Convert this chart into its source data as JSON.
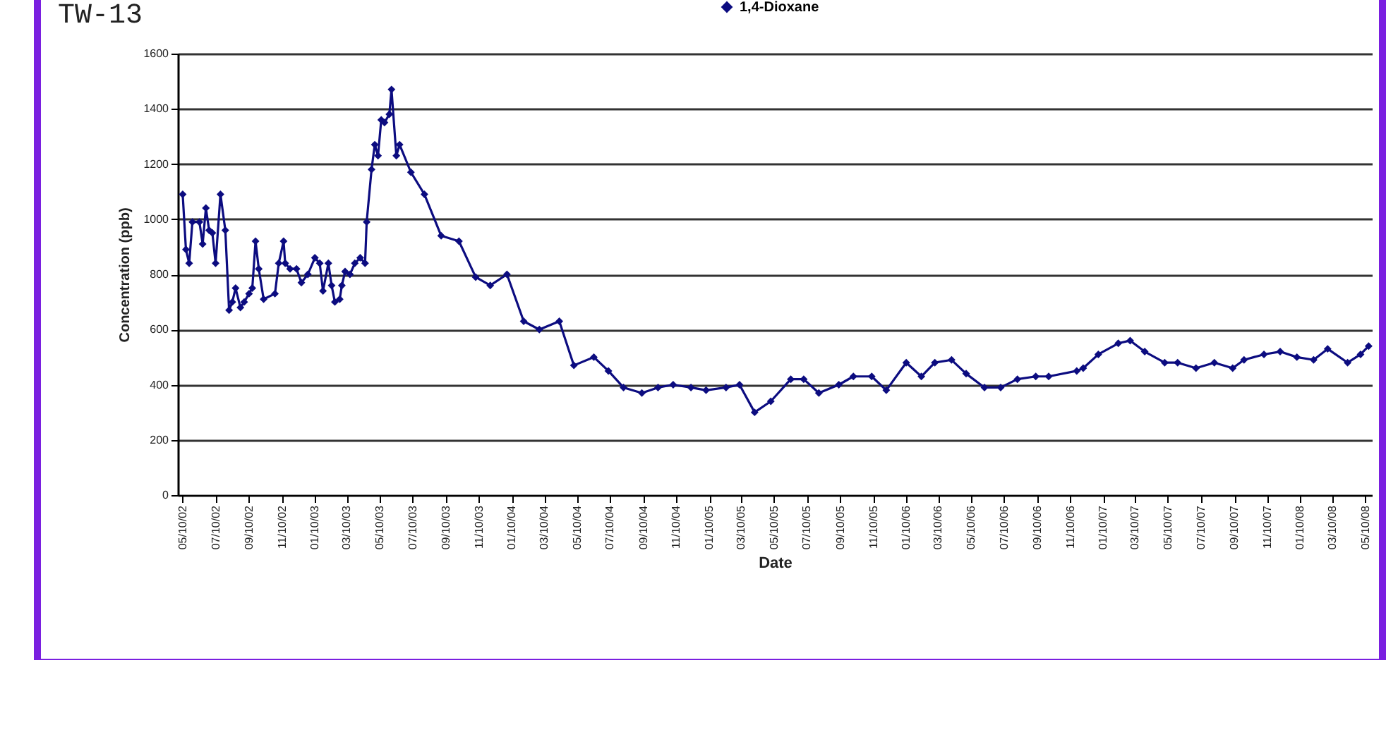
{
  "chart_data": {
    "type": "line",
    "title": "TW-13",
    "xlabel": "Date",
    "ylabel": "Concentration (ppb)",
    "x": [
      "2002-05-10",
      "2002-05-16",
      "2002-05-22",
      "2002-05-28",
      "2002-06-10",
      "2002-06-16",
      "2002-06-22",
      "2002-06-28",
      "2002-07-04",
      "2002-07-10",
      "2002-07-19",
      "2002-07-28",
      "2002-08-04",
      "2002-08-10",
      "2002-08-16",
      "2002-08-25",
      "2002-09-01",
      "2002-09-10",
      "2002-09-16",
      "2002-09-22",
      "2002-09-28",
      "2002-10-07",
      "2002-10-28",
      "2002-11-04",
      "2002-11-13",
      "2002-11-16",
      "2002-11-25",
      "2002-12-07",
      "2002-12-16",
      "2002-12-28",
      "2003-01-10",
      "2003-01-19",
      "2003-01-25",
      "2003-02-04",
      "2003-02-10",
      "2003-02-16",
      "2003-02-25",
      "2003-03-01",
      "2003-03-07",
      "2003-03-16",
      "2003-03-25",
      "2003-04-04",
      "2003-04-13",
      "2003-04-16",
      "2003-04-25",
      "2003-05-01",
      "2003-05-07",
      "2003-05-13",
      "2003-05-19",
      "2003-05-28",
      "2003-06-01",
      "2003-06-10",
      "2003-06-16",
      "2003-07-07",
      "2003-08-01",
      "2003-09-01",
      "2003-10-04",
      "2003-11-04",
      "2003-12-01",
      "2004-01-01",
      "2004-02-01",
      "2004-03-01",
      "2004-04-07",
      "2004-05-04",
      "2004-06-10",
      "2004-07-07",
      "2004-08-04",
      "2004-09-07",
      "2004-10-07",
      "2004-11-04",
      "2004-12-07",
      "2005-01-04",
      "2005-02-10",
      "2005-03-07",
      "2005-04-04",
      "2005-05-04",
      "2005-06-10",
      "2005-07-04",
      "2005-08-01",
      "2005-09-07",
      "2005-10-04",
      "2005-11-07",
      "2005-12-04",
      "2006-01-10",
      "2006-02-07",
      "2006-03-04",
      "2006-04-04",
      "2006-05-01",
      "2006-06-04",
      "2006-07-04",
      "2006-08-04",
      "2006-09-07",
      "2006-10-01",
      "2006-11-22",
      "2006-12-04",
      "2007-01-01",
      "2007-02-07",
      "2007-03-01",
      "2007-03-28",
      "2007-05-04",
      "2007-05-28",
      "2007-07-01",
      "2007-08-04",
      "2007-09-07",
      "2007-09-28",
      "2007-11-04",
      "2007-12-04",
      "2008-01-04",
      "2008-02-04",
      "2008-03-01",
      "2008-04-07",
      "2008-05-01",
      "2008-05-16"
    ],
    "series": [
      {
        "name": "1,4-Dioxane",
        "color": "#0c0c80",
        "values": [
          1090,
          890,
          840,
          990,
          990,
          910,
          1040,
          960,
          950,
          840,
          1090,
          960,
          670,
          700,
          750,
          680,
          700,
          730,
          750,
          920,
          820,
          710,
          730,
          840,
          920,
          840,
          820,
          820,
          770,
          800,
          860,
          840,
          740,
          840,
          760,
          700,
          710,
          760,
          810,
          800,
          840,
          860,
          840,
          990,
          1180,
          1270,
          1230,
          1360,
          1350,
          1380,
          1470,
          1230,
          1270,
          1170,
          1090,
          940,
          920,
          790,
          760,
          800,
          630,
          600,
          630,
          470,
          500,
          450,
          390,
          370,
          390,
          400,
          390,
          380,
          390,
          400,
          300,
          340,
          420,
          420,
          370,
          400,
          430,
          430,
          380,
          480,
          430,
          480,
          490,
          440,
          390,
          390,
          420,
          430,
          430,
          450,
          460,
          510,
          550,
          560,
          520,
          480,
          480,
          460,
          480,
          460,
          490,
          510,
          520,
          500,
          490,
          530,
          480,
          510,
          540
        ]
      }
    ],
    "ylim": [
      0,
      1600
    ],
    "yticks": [
      0,
      200,
      400,
      600,
      800,
      1000,
      1200,
      1400,
      1600
    ],
    "xlim": [
      "2002-05-01",
      "2008-05-22"
    ],
    "xticks": [
      {
        "value": "2002-05-10",
        "label": "05/10/02"
      },
      {
        "value": "2002-07-10",
        "label": "07/10/02"
      },
      {
        "value": "2002-09-10",
        "label": "09/10/02"
      },
      {
        "value": "2002-11-10",
        "label": "11/10/02"
      },
      {
        "value": "2003-01-10",
        "label": "01/10/03"
      },
      {
        "value": "2003-03-10",
        "label": "03/10/03"
      },
      {
        "value": "2003-05-10",
        "label": "05/10/03"
      },
      {
        "value": "2003-07-10",
        "label": "07/10/03"
      },
      {
        "value": "2003-09-10",
        "label": "09/10/03"
      },
      {
        "value": "2003-11-10",
        "label": "11/10/03"
      },
      {
        "value": "2004-01-10",
        "label": "01/10/04"
      },
      {
        "value": "2004-03-10",
        "label": "03/10/04"
      },
      {
        "value": "2004-05-10",
        "label": "05/10/04"
      },
      {
        "value": "2004-07-10",
        "label": "07/10/04"
      },
      {
        "value": "2004-09-10",
        "label": "09/10/04"
      },
      {
        "value": "2004-11-10",
        "label": "11/10/04"
      },
      {
        "value": "2005-01-10",
        "label": "01/10/05"
      },
      {
        "value": "2005-03-10",
        "label": "03/10/05"
      },
      {
        "value": "2005-05-10",
        "label": "05/10/05"
      },
      {
        "value": "2005-07-10",
        "label": "07/10/05"
      },
      {
        "value": "2005-09-10",
        "label": "09/10/05"
      },
      {
        "value": "2005-11-10",
        "label": "11/10/05"
      },
      {
        "value": "2006-01-10",
        "label": "01/10/06"
      },
      {
        "value": "2006-03-10",
        "label": "03/10/06"
      },
      {
        "value": "2006-05-10",
        "label": "05/10/06"
      },
      {
        "value": "2006-07-10",
        "label": "07/10/06"
      },
      {
        "value": "2006-09-10",
        "label": "09/10/06"
      },
      {
        "value": "2006-11-10",
        "label": "11/10/06"
      },
      {
        "value": "2007-01-10",
        "label": "01/10/07"
      },
      {
        "value": "2007-03-10",
        "label": "03/10/07"
      },
      {
        "value": "2007-05-10",
        "label": "05/10/07"
      },
      {
        "value": "2007-07-10",
        "label": "07/10/07"
      },
      {
        "value": "2007-09-10",
        "label": "09/10/07"
      },
      {
        "value": "2007-11-10",
        "label": "11/10/07"
      },
      {
        "value": "2008-01-10",
        "label": "01/10/08"
      },
      {
        "value": "2008-03-10",
        "label": "03/10/08"
      },
      {
        "value": "2008-05-10",
        "label": "05/10/08"
      }
    ],
    "grid": "y",
    "legend": "top",
    "marker": "diamond",
    "line_style": "solid"
  }
}
